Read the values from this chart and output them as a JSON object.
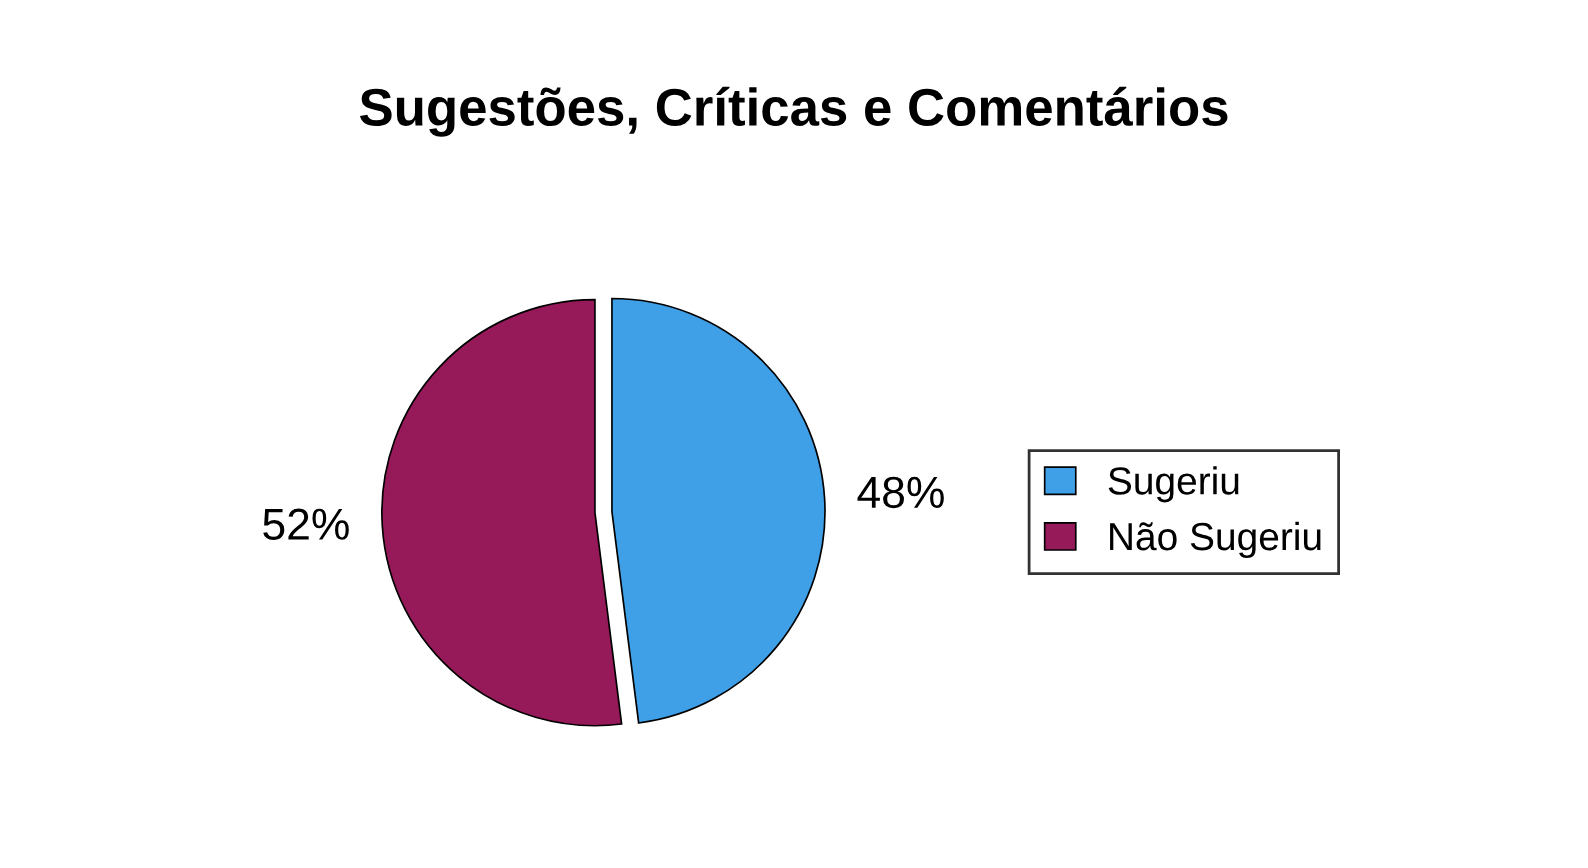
{
  "chart_data": {
    "type": "pie",
    "title": "Sugestões, Críticas e Comentários",
    "categories": [
      "Sugeriu",
      "Não Sugeriu"
    ],
    "values": [
      48,
      52
    ],
    "value_labels": [
      "48%",
      "52%"
    ],
    "colors": [
      "#3fa0e8",
      "#96195a"
    ],
    "legend": "right"
  }
}
